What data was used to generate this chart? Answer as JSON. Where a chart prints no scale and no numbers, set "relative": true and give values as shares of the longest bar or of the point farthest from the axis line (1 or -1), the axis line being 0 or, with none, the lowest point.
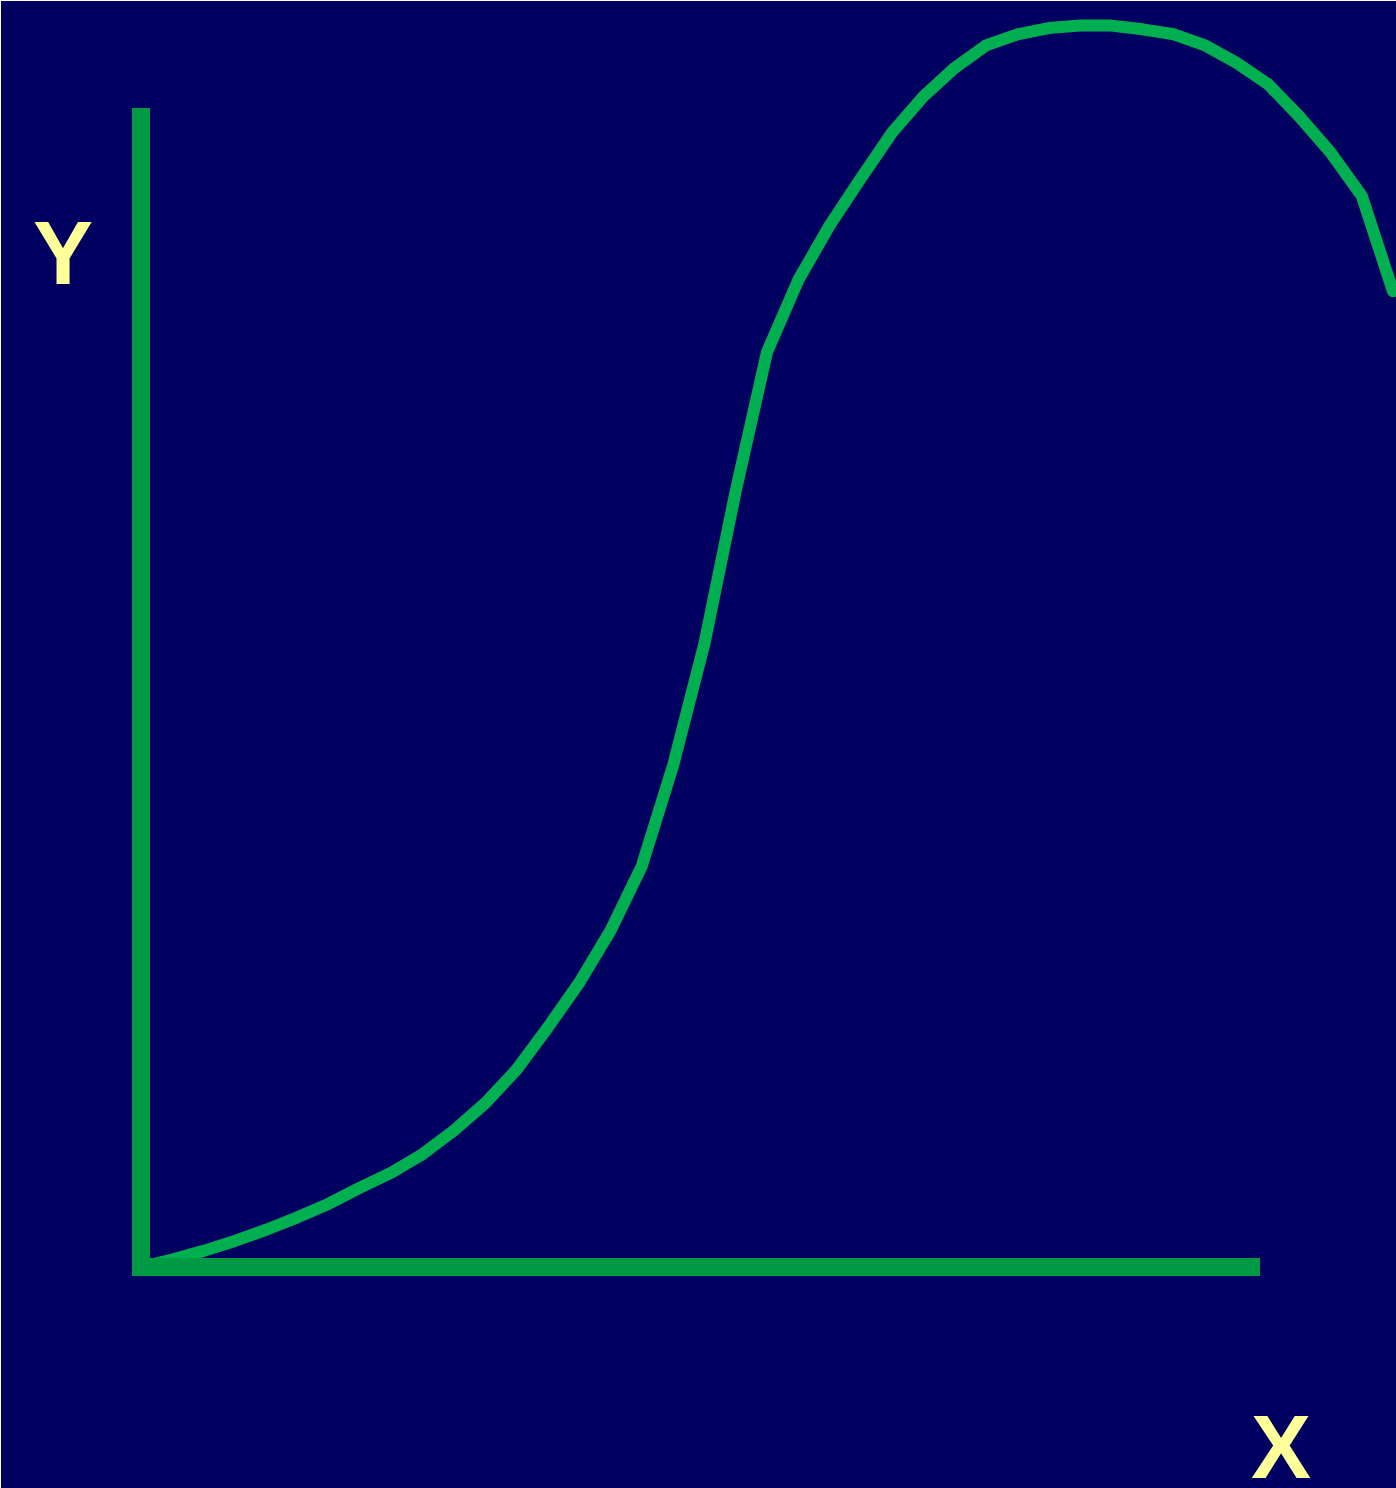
{
  "chart_data": {
    "type": "line",
    "xlabel": "X",
    "ylabel": "Y",
    "relative": true,
    "categories": [
      null,
      null,
      null,
      null,
      null,
      null,
      null,
      null,
      null,
      null,
      null,
      null,
      null,
      null,
      null,
      null,
      null,
      null,
      null,
      null,
      null,
      null,
      null,
      null,
      null,
      null,
      null,
      null,
      null,
      null,
      null,
      null,
      null,
      null,
      null,
      null,
      null,
      null,
      null,
      null,
      null
    ],
    "series": [
      {
        "color": "#00b050",
        "values": [
          0,
          0.006,
          0.013,
          0.021,
          0.03,
          0.04,
          0.051,
          0.064,
          0.076,
          0.091,
          0.11,
          0.132,
          0.159,
          0.193,
          0.229,
          0.271,
          0.323,
          0.404,
          0.502,
          0.625,
          0.737,
          0.795,
          0.839,
          0.877,
          0.914,
          0.943,
          0.966,
          0.984,
          0.993,
          0.998,
          1,
          1,
          0.997,
          0.993,
          0.984,
          0.97,
          0.953,
          0.927,
          0.898,
          0.863,
          0.786
        ]
      }
    ],
    "line_style": "solid"
  }
}
